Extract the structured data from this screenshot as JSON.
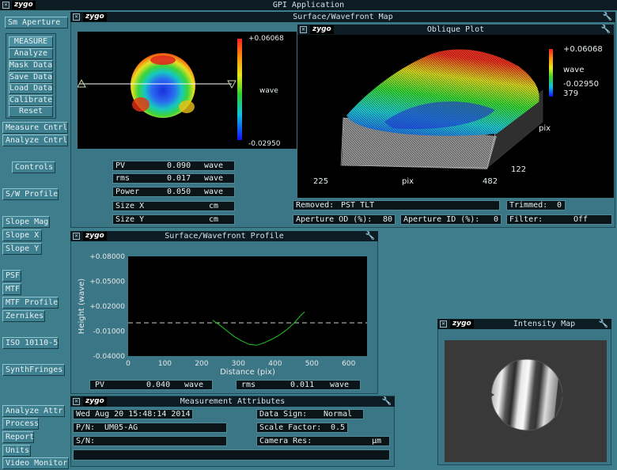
{
  "app": {
    "title": "GPI Application",
    "logo": "zygo"
  },
  "sidebar": {
    "aperture": "Sm Aperture",
    "group": [
      "MEASURE",
      "Analyze",
      "Mask Data",
      "Save Data",
      "Load Data",
      "Calibrate",
      "Reset"
    ],
    "measure_cntrl": "Measure Cntrl",
    "analyze_cntrl": "Analyze Cntrl",
    "controls": "Controls",
    "sw_profile": "S/W Profile",
    "slope_mag": "Slope Mag",
    "slope_x": "Slope X",
    "slope_y": "Slope Y",
    "psf": "PSF",
    "mtf": "MTF",
    "mtf_profile": "MTF Profile",
    "zernikes": "Zernikes",
    "iso": "ISO 10110-5",
    "synth": "SynthFringes",
    "analyze_attr": "Analyze Attr",
    "process": "Process",
    "report": "Report",
    "units": "Units",
    "video_monitor": "Video Monitor"
  },
  "surface_map": {
    "title": "Surface/Wavefront Map",
    "colorbar_max": "+0.06068",
    "colorbar_min": "-0.02950",
    "colorbar_unit": "wave",
    "stats": [
      {
        "label": "PV",
        "value": "0.090",
        "unit": "wave"
      },
      {
        "label": "rms",
        "value": "0.017",
        "unit": "wave"
      },
      {
        "label": "Power",
        "value": "0.050",
        "unit": "wave"
      },
      {
        "label": "Size X",
        "value": "",
        "unit": "cm"
      },
      {
        "label": "Size Y",
        "value": "",
        "unit": "cm"
      }
    ]
  },
  "oblique": {
    "title": "Oblique Plot",
    "legend_max": "+0.06068",
    "legend_unit": "wave",
    "legend_min": "-0.02950",
    "legend_extra": "379",
    "axis_pix_right": "pix",
    "axis_122": "122",
    "axis_225": "225",
    "axis_pix_bottom": "pix",
    "axis_482": "482",
    "removed_label": "Removed:",
    "removed_value": "PST TLT",
    "trimmed_label": "Trimmed:",
    "trimmed_value": "0",
    "aperture_od_label": "Aperture OD (%):",
    "aperture_od_value": "80",
    "aperture_id_label": "Aperture ID (%):",
    "aperture_id_value": "0",
    "filter_label": "Filter:",
    "filter_value": "Off"
  },
  "profile": {
    "title": "Surface/Wavefront Profile",
    "ylabel": "Height (wave)",
    "xlabel": "Distance (pix)",
    "yticks": [
      "+0.08000",
      "+0.05000",
      "+0.02000",
      "-0.01000",
      "-0.04000"
    ],
    "xticks": [
      "0",
      "100",
      "200",
      "300",
      "400",
      "500",
      "600"
    ],
    "pv_label": "PV",
    "pv_value": "0.040",
    "pv_unit": "wave",
    "rms_label": "rms",
    "rms_value": "0.011",
    "rms_unit": "wave"
  },
  "chart_data": {
    "type": "line",
    "xlabel": "Distance (pix)",
    "ylabel": "Height (wave)",
    "xlim": [
      0,
      650
    ],
    "ylim": [
      -0.04,
      0.08
    ],
    "yticks": [
      0.08,
      0.05,
      0.02,
      -0.01,
      -0.04
    ],
    "xticks": [
      0,
      100,
      200,
      300,
      400,
      500,
      600
    ],
    "reference_line": 0.0,
    "series": [
      {
        "x": [
          230,
          250,
          270,
          290,
          310,
          330,
          350,
          370,
          390,
          410,
          430,
          450,
          470,
          480
        ],
        "y": [
          0.003,
          -0.003,
          -0.01,
          -0.017,
          -0.022,
          -0.026,
          -0.027,
          -0.024,
          -0.02,
          -0.015,
          -0.009,
          -0.001,
          0.009,
          0.013
        ]
      }
    ]
  },
  "intensity": {
    "title": "Intensity Map"
  },
  "attributes": {
    "title": "Measurement Attributes",
    "date": "Wed Aug 20 15:48:14 2014",
    "pn_label": "P/N:",
    "pn_value": "UM05-AG",
    "sn_label": "S/N:",
    "sn_value": "",
    "sign_label": "Data Sign:",
    "sign_value": "Normal",
    "scale_label": "Scale Factor:",
    "scale_value": "0.5",
    "camres_label": "Camera Res:",
    "camres_unit": "µm"
  }
}
